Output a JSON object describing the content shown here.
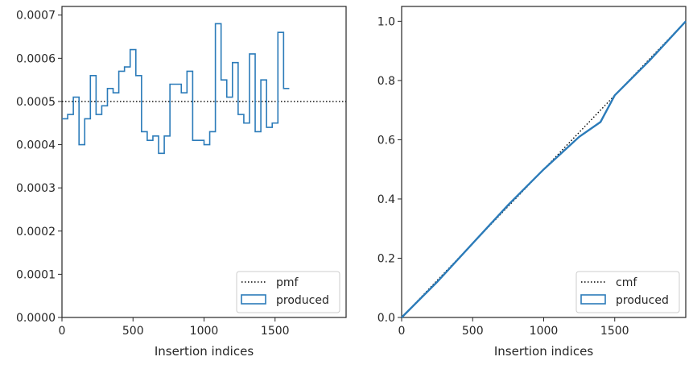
{
  "chart_data": [
    {
      "type": "step",
      "xlabel": "Insertion indices",
      "ylabel": "",
      "xlim": [
        0,
        2000
      ],
      "ylim": [
        0,
        0.00072
      ],
      "xticks": [
        0,
        500,
        1000,
        1500
      ],
      "xtick_labels": [
        "0",
        "500",
        "1000",
        "1500"
      ],
      "yticks": [
        0,
        0.0001,
        0.0002,
        0.0003,
        0.0004,
        0.0005,
        0.0006,
        0.0007
      ],
      "ytick_labels": [
        "0.0000",
        "0.0001",
        "0.0002",
        "0.0003",
        "0.0004",
        "0.0005",
        "0.0006",
        "0.0007"
      ],
      "legend_position": "lower-right",
      "series": [
        {
          "name": "pmf",
          "style": "dotted",
          "color": "#000000",
          "x": [
            0,
            2000
          ],
          "y": [
            0.0005,
            0.0005
          ]
        },
        {
          "name": "produced",
          "style": "step-histogram",
          "color": "#2b7bb9",
          "bin_width": 40,
          "values": [
            0.00046,
            0.00047,
            0.00051,
            0.0004,
            0.00046,
            0.00056,
            0.00047,
            0.00049,
            0.00053,
            0.00052,
            0.00057,
            0.00058,
            0.00062,
            0.00056,
            0.00043,
            0.00041,
            0.00042,
            0.00038,
            0.00042,
            0.00054,
            0.00054,
            0.00052,
            0.00057,
            0.00041,
            0.00041,
            0.0004,
            0.00043,
            0.00068,
            0.00055,
            0.00051,
            0.00059,
            0.00047,
            0.00045,
            0.00061,
            0.00043,
            0.00055,
            0.00044,
            0.00045,
            0.00066,
            0.00053
          ]
        }
      ]
    },
    {
      "type": "line",
      "xlabel": "Insertion indices",
      "ylabel": "",
      "xlim": [
        0,
        2000
      ],
      "ylim": [
        0,
        1.05
      ],
      "xticks": [
        0,
        500,
        1000,
        1500
      ],
      "xtick_labels": [
        "0",
        "500",
        "1000",
        "1500"
      ],
      "yticks": [
        0,
        0.2,
        0.4,
        0.6,
        0.8,
        1.0
      ],
      "ytick_labels": [
        "0.0",
        "0.2",
        "0.4",
        "0.6",
        "0.8",
        "1.0"
      ],
      "legend_position": "lower-right",
      "series": [
        {
          "name": "cmf",
          "style": "dotted",
          "color": "#000000",
          "x": [
            0,
            2000
          ],
          "y": [
            0,
            1.0
          ]
        },
        {
          "name": "produced",
          "style": "solid",
          "color": "#2b7bb9",
          "x": [
            0,
            250,
            500,
            750,
            1000,
            1250,
            1400,
            1500,
            1750,
            2000
          ],
          "y": [
            0,
            0.12,
            0.25,
            0.38,
            0.5,
            0.61,
            0.66,
            0.75,
            0.87,
            1.0
          ]
        }
      ]
    }
  ]
}
